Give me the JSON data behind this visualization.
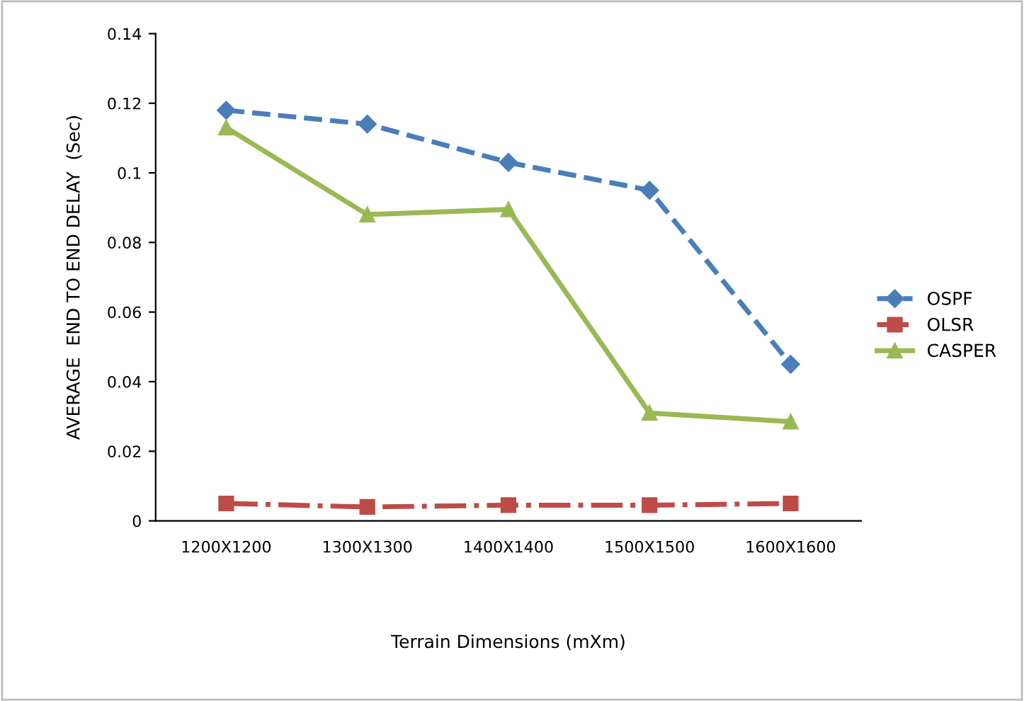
{
  "chart_data": {
    "type": "line",
    "xlabel": "Terrain Dimensions (mXm)",
    "ylabel": "AVERAGE  END TO END DELAY  (Sec)",
    "categories": [
      "1200X1200",
      "1300X1300",
      "1400X1400",
      "1500X1500",
      "1600X1600"
    ],
    "series": [
      {
        "name": "OSPF",
        "color": "#4a7ebb",
        "marker": "diamond",
        "line_style": "dashed",
        "values": [
          0.118,
          0.114,
          0.103,
          0.095,
          0.045
        ]
      },
      {
        "name": "OLSR",
        "color": "#be4b48",
        "marker": "square",
        "line_style": "dashdot",
        "values": [
          0.005,
          0.004,
          0.0045,
          0.0045,
          0.005
        ]
      },
      {
        "name": "CASPER",
        "color": "#98b954",
        "marker": "triangle",
        "line_style": "solid",
        "values": [
          0.113,
          0.088,
          0.0895,
          0.031,
          0.0285
        ]
      }
    ],
    "ylim": [
      0,
      0.14
    ],
    "yticks": [
      0,
      0.02,
      0.04,
      0.06,
      0.08,
      0.1,
      0.12,
      0.14
    ],
    "grid": false,
    "legend": "right"
  }
}
